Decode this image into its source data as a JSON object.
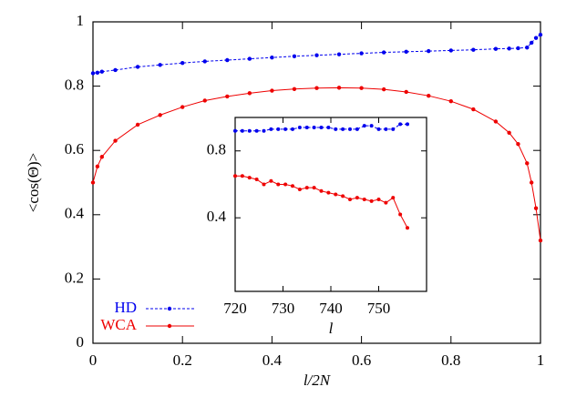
{
  "chart_data": [
    {
      "type": "line",
      "xlabel": "l/2N",
      "ylabel": "<cos(Θ)>",
      "xlim": [
        0,
        1
      ],
      "ylim": [
        0,
        1
      ],
      "xticks": [
        0,
        0.2,
        0.4,
        0.6,
        0.8,
        1
      ],
      "yticks": [
        0,
        0.2,
        0.4,
        0.6,
        0.8,
        1
      ],
      "legend": "lower left",
      "x": [
        0,
        0.01,
        0.02,
        0.05,
        0.1,
        0.15,
        0.2,
        0.25,
        0.3,
        0.35,
        0.4,
        0.45,
        0.5,
        0.55,
        0.6,
        0.65,
        0.7,
        0.75,
        0.8,
        0.85,
        0.9,
        0.93,
        0.95,
        0.97,
        0.98,
        0.99,
        1
      ],
      "series": [
        {
          "name": "HD",
          "color": "#0000ee",
          "dashed": true,
          "values": [
            0.84,
            0.842,
            0.845,
            0.85,
            0.86,
            0.866,
            0.872,
            0.877,
            0.881,
            0.885,
            0.889,
            0.893,
            0.896,
            0.899,
            0.902,
            0.905,
            0.907,
            0.909,
            0.911,
            0.913,
            0.916,
            0.917,
            0.918,
            0.92,
            0.935,
            0.95,
            0.96
          ]
        },
        {
          "name": "WCA",
          "color": "#ee0000",
          "dashed": false,
          "values": [
            0.5,
            0.55,
            0.58,
            0.63,
            0.68,
            0.71,
            0.735,
            0.755,
            0.768,
            0.778,
            0.786,
            0.791,
            0.794,
            0.795,
            0.794,
            0.79,
            0.782,
            0.77,
            0.753,
            0.728,
            0.69,
            0.655,
            0.62,
            0.56,
            0.5,
            0.42,
            0.32
          ]
        }
      ]
    },
    {
      "type": "line",
      "xlabel": "l",
      "xlim": [
        720,
        760
      ],
      "ylim": [
        -0.04,
        1.0
      ],
      "xticks": [
        720,
        730,
        740,
        750
      ],
      "yticks": [
        0.4,
        0.8
      ],
      "x": [
        720,
        721.5,
        723,
        724.5,
        726,
        727.5,
        729,
        730.5,
        732,
        733.5,
        735,
        736.5,
        738,
        739.5,
        741,
        742.5,
        744,
        745.5,
        747,
        748.5,
        750,
        751.5,
        753,
        754.5,
        756
      ],
      "series": [
        {
          "color": "#0000ee",
          "dashed": true,
          "values": [
            0.92,
            0.92,
            0.92,
            0.92,
            0.92,
            0.93,
            0.93,
            0.93,
            0.93,
            0.94,
            0.94,
            0.94,
            0.94,
            0.94,
            0.93,
            0.93,
            0.93,
            0.93,
            0.95,
            0.95,
            0.93,
            0.93,
            0.93,
            0.96,
            0.96
          ]
        },
        {
          "color": "#ee0000",
          "dashed": false,
          "values": [
            0.65,
            0.65,
            0.64,
            0.63,
            0.6,
            0.62,
            0.6,
            0.6,
            0.59,
            0.57,
            0.58,
            0.58,
            0.56,
            0.55,
            0.54,
            0.53,
            0.51,
            0.52,
            0.51,
            0.5,
            0.51,
            0.49,
            0.52,
            0.42,
            0.34
          ]
        }
      ]
    }
  ]
}
